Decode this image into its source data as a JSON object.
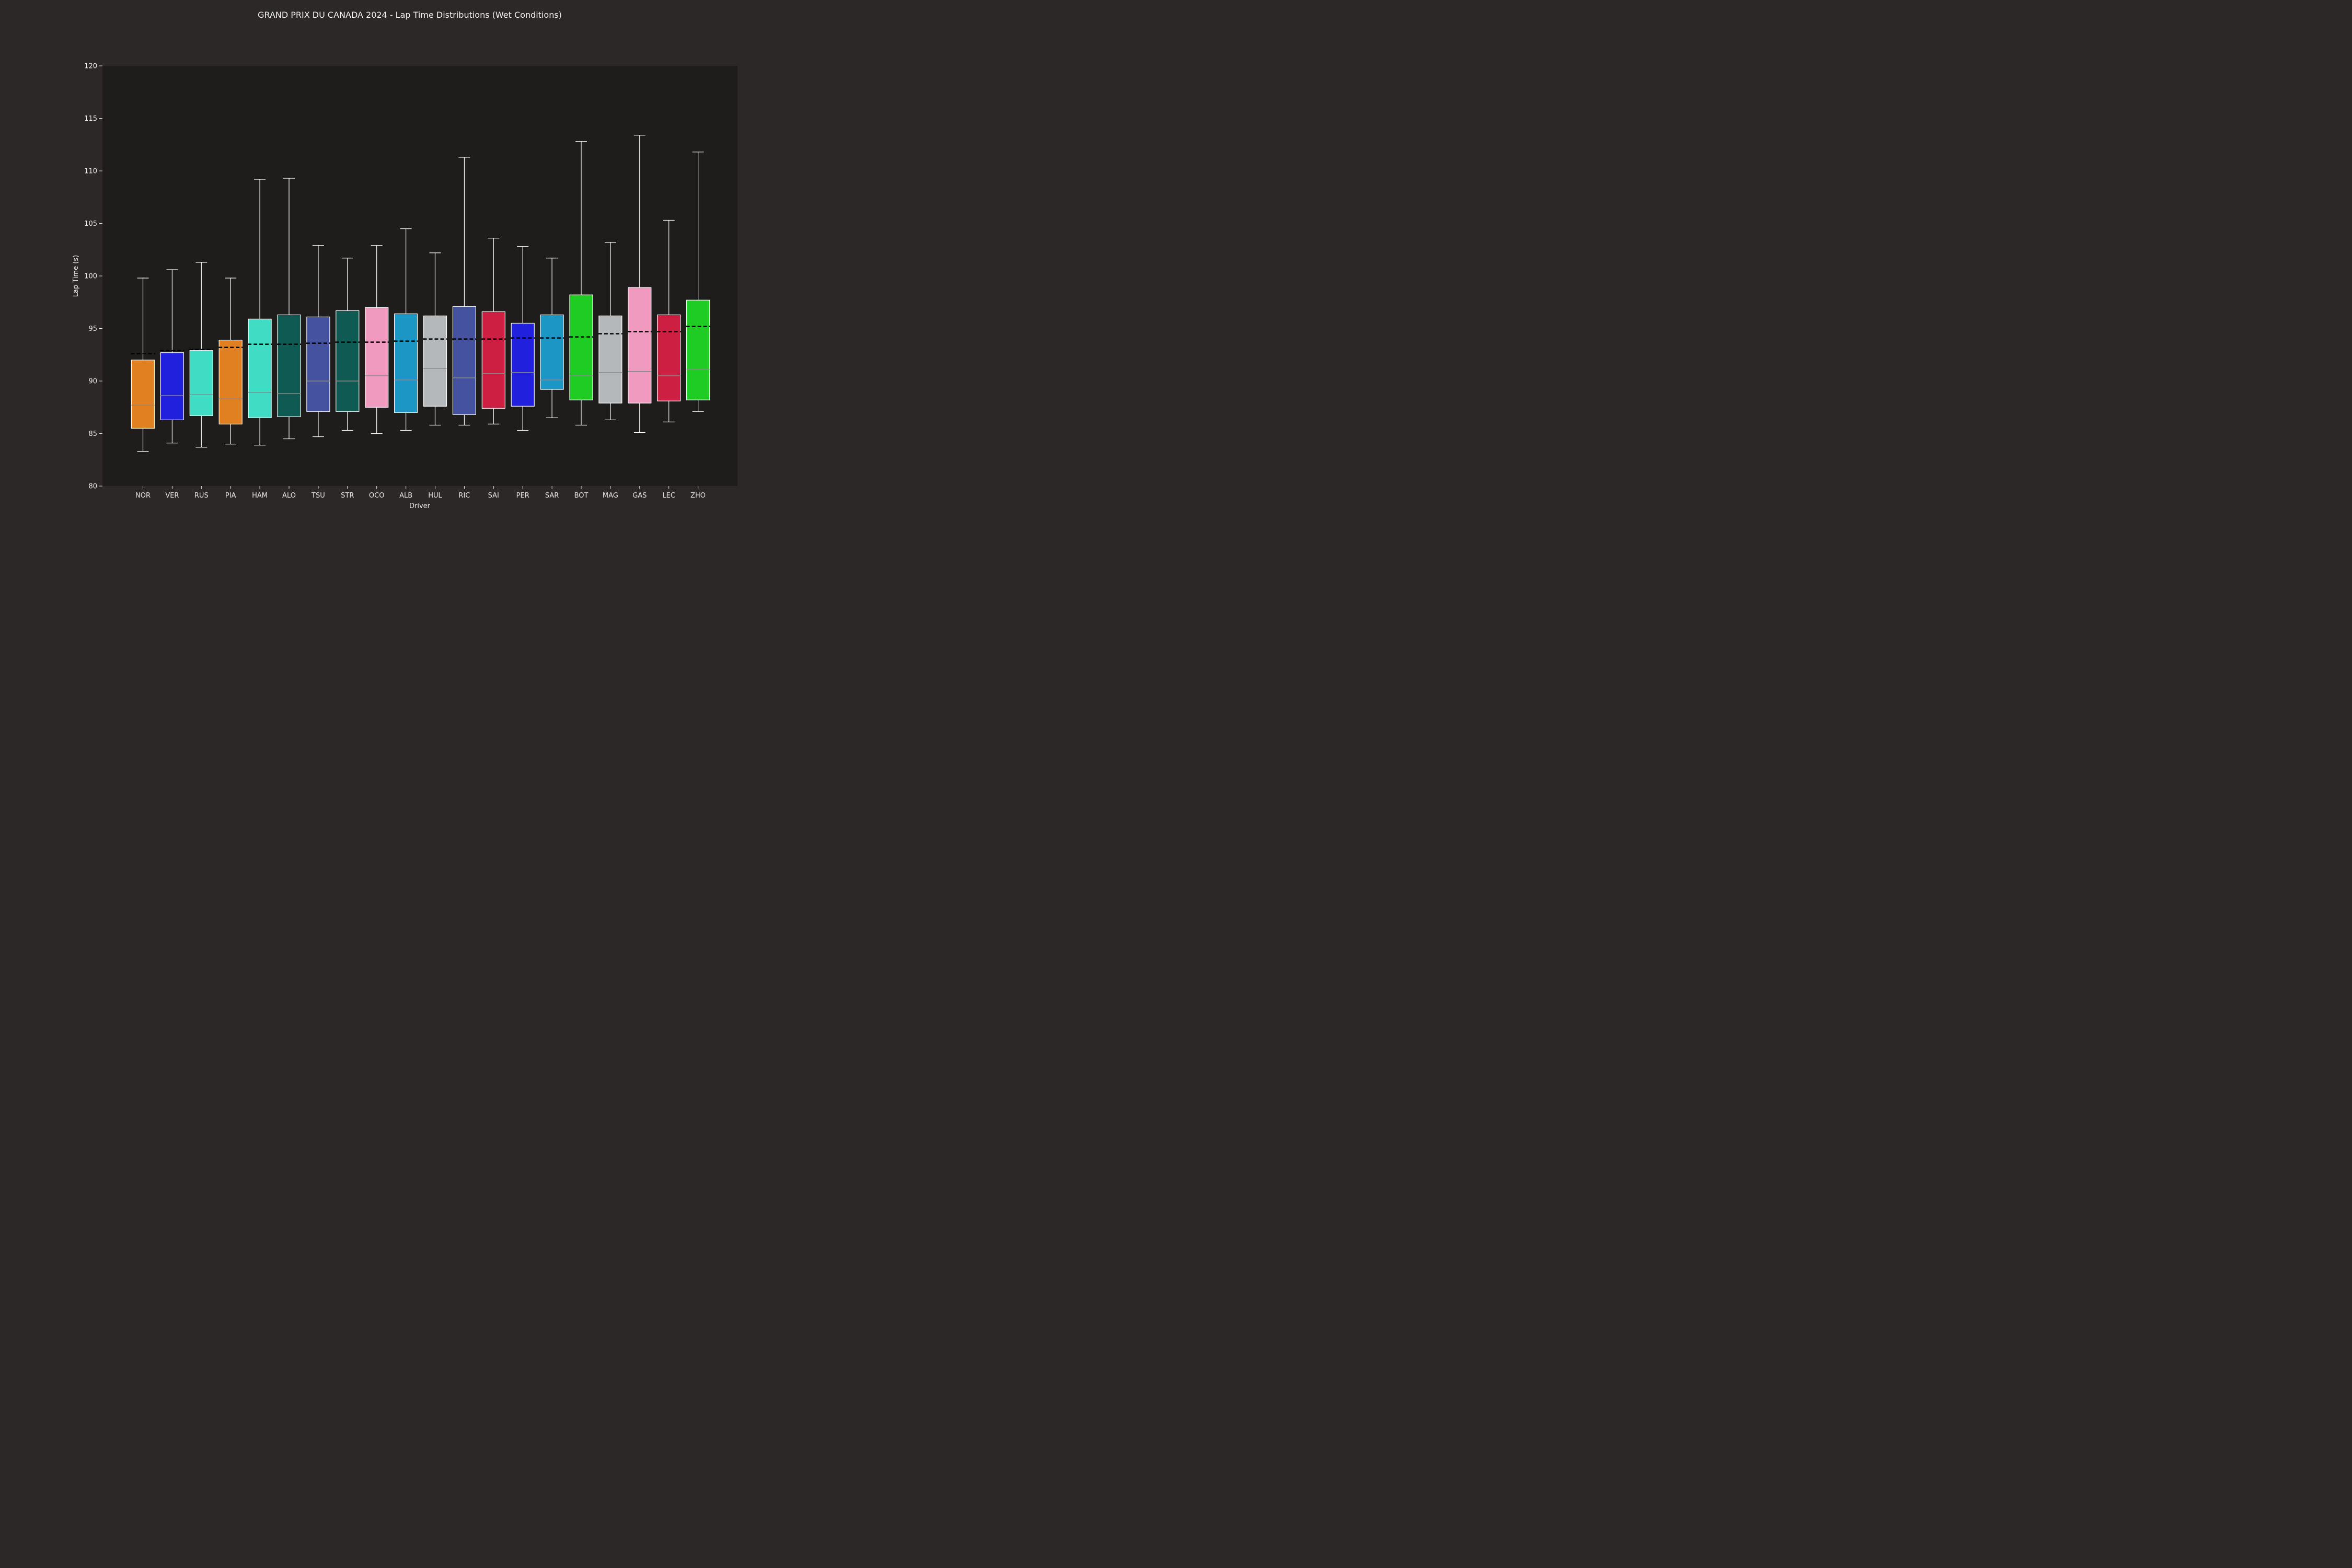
{
  "chart_data": {
    "type": "box",
    "title": "GRAND PRIX DU CANADA 2024 - Lap Time Distributions (Wet Conditions)",
    "xlabel": "Driver",
    "ylabel": "Lap Time (s)",
    "ylim": [
      80,
      120
    ],
    "yticks": [
      80,
      85,
      90,
      95,
      100,
      105,
      110,
      115,
      120
    ],
    "grid": false,
    "legend": "none",
    "mean_line": "black dashed",
    "colors": {
      "background": "#2b2827",
      "plot_background": "#1e1d1c",
      "box_edge": "#ffffff",
      "median": "#8a8a8a",
      "mean": "#000000"
    },
    "boxes": [
      {
        "driver": "NOR",
        "color": "#e08020",
        "whisker_low": 83.3,
        "q1": 85.5,
        "median": 87.7,
        "q3": 92.0,
        "whisker_high": 99.8,
        "mean": 92.6
      },
      {
        "driver": "VER",
        "color": "#2020dd",
        "whisker_low": 84.1,
        "q1": 86.3,
        "median": 88.6,
        "q3": 92.7,
        "whisker_high": 100.6,
        "mean": 92.9
      },
      {
        "driver": "RUS",
        "color": "#40dcc4",
        "whisker_low": 83.7,
        "q1": 86.7,
        "median": 88.7,
        "q3": 92.9,
        "whisker_high": 101.3,
        "mean": 93.0
      },
      {
        "driver": "PIA",
        "color": "#e08020",
        "whisker_low": 84.0,
        "q1": 85.9,
        "median": 88.3,
        "q3": 93.9,
        "whisker_high": 99.8,
        "mean": 93.2
      },
      {
        "driver": "HAM",
        "color": "#40dcc4",
        "whisker_low": 83.9,
        "q1": 86.5,
        "median": 88.9,
        "q3": 95.9,
        "whisker_high": 109.2,
        "mean": 93.5
      },
      {
        "driver": "ALO",
        "color": "#0f5a52",
        "whisker_low": 84.5,
        "q1": 86.6,
        "median": 88.8,
        "q3": 96.3,
        "whisker_high": 109.3,
        "mean": 93.5
      },
      {
        "driver": "TSU",
        "color": "#4452a0",
        "whisker_low": 84.7,
        "q1": 87.1,
        "median": 90.0,
        "q3": 96.1,
        "whisker_high": 102.9,
        "mean": 93.6
      },
      {
        "driver": "STR",
        "color": "#0f5a52",
        "whisker_low": 85.3,
        "q1": 87.1,
        "median": 90.0,
        "q3": 96.7,
        "whisker_high": 101.7,
        "mean": 93.7
      },
      {
        "driver": "OCO",
        "color": "#f09abf",
        "whisker_low": 85.0,
        "q1": 87.5,
        "median": 90.5,
        "q3": 97.0,
        "whisker_high": 102.9,
        "mean": 93.7
      },
      {
        "driver": "ALB",
        "color": "#1c96c4",
        "whisker_low": 85.3,
        "q1": 87.0,
        "median": 90.1,
        "q3": 96.4,
        "whisker_high": 104.5,
        "mean": 93.8
      },
      {
        "driver": "HUL",
        "color": "#b5b8bb",
        "whisker_low": 85.8,
        "q1": 87.6,
        "median": 91.2,
        "q3": 96.2,
        "whisker_high": 102.2,
        "mean": 94.0
      },
      {
        "driver": "RIC",
        "color": "#4452a0",
        "whisker_low": 85.8,
        "q1": 86.8,
        "median": 90.3,
        "q3": 97.1,
        "whisker_high": 111.3,
        "mean": 94.0
      },
      {
        "driver": "SAI",
        "color": "#cc1f42",
        "whisker_low": 85.9,
        "q1": 87.4,
        "median": 90.7,
        "q3": 96.6,
        "whisker_high": 103.6,
        "mean": 94.0
      },
      {
        "driver": "PER",
        "color": "#2020dd",
        "whisker_low": 85.3,
        "q1": 87.6,
        "median": 90.8,
        "q3": 95.5,
        "whisker_high": 102.8,
        "mean": 94.1
      },
      {
        "driver": "SAR",
        "color": "#1c96c4",
        "whisker_low": 86.5,
        "q1": 89.2,
        "median": 90.1,
        "q3": 96.3,
        "whisker_high": 101.7,
        "mean": 94.1
      },
      {
        "driver": "BOT",
        "color": "#1ecc24",
        "whisker_low": 85.8,
        "q1": 88.2,
        "median": 90.5,
        "q3": 98.2,
        "whisker_high": 112.8,
        "mean": 94.2
      },
      {
        "driver": "MAG",
        "color": "#b5b8bb",
        "whisker_low": 86.3,
        "q1": 87.9,
        "median": 90.8,
        "q3": 96.2,
        "whisker_high": 103.2,
        "mean": 94.5
      },
      {
        "driver": "GAS",
        "color": "#f09abf",
        "whisker_low": 85.1,
        "q1": 87.9,
        "median": 90.9,
        "q3": 98.9,
        "whisker_high": 113.4,
        "mean": 94.7
      },
      {
        "driver": "LEC",
        "color": "#cc1f42",
        "whisker_low": 86.1,
        "q1": 88.1,
        "median": 90.5,
        "q3": 96.3,
        "whisker_high": 105.3,
        "mean": 94.7
      },
      {
        "driver": "ZHO",
        "color": "#1ecc24",
        "whisker_low": 87.1,
        "q1": 88.2,
        "median": 91.1,
        "q3": 97.7,
        "whisker_high": 111.8,
        "mean": 95.2
      }
    ]
  }
}
